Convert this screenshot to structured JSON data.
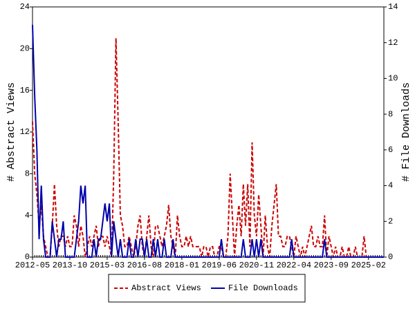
{
  "chart_data": {
    "type": "line",
    "y_label": "# Abstract Views",
    "y2_label": "# File Downloads",
    "categories": [
      "2012-05",
      null,
      null,
      null,
      null,
      null,
      null,
      null,
      null,
      null,
      null,
      null,
      null,
      null,
      null,
      null,
      null,
      "2013-10",
      null,
      null,
      null,
      null,
      null,
      null,
      null,
      null,
      null,
      null,
      null,
      null,
      null,
      null,
      null,
      null,
      "2015-03",
      null,
      null,
      null,
      null,
      null,
      null,
      null,
      null,
      null,
      null,
      null,
      null,
      null,
      null,
      null,
      null,
      "2016-08",
      null,
      null,
      null,
      null,
      null,
      null,
      null,
      null,
      null,
      null,
      null,
      null,
      null,
      null,
      null,
      null,
      "2018-01",
      null,
      null,
      null,
      null,
      null,
      null,
      null,
      null,
      null,
      null,
      null,
      null,
      null,
      null,
      null,
      null,
      "2019-06",
      null,
      null,
      null,
      null,
      null,
      null,
      null,
      null,
      null,
      null,
      null,
      null,
      null,
      null,
      null,
      null,
      "2020-11",
      null,
      null,
      null,
      null,
      null,
      null,
      null,
      null,
      null,
      null,
      null,
      null,
      null,
      null,
      null,
      null,
      "2022-04",
      null,
      null,
      null,
      null,
      null,
      null,
      null,
      null,
      null,
      null,
      null,
      null,
      null,
      null,
      null,
      null,
      "2023-09",
      null,
      null,
      null,
      null,
      null,
      null,
      null,
      null,
      null,
      null,
      null,
      null,
      null,
      null,
      null,
      null,
      "2025-02",
      null,
      null,
      null,
      null,
      null,
      null,
      null
    ],
    "series": [
      {
        "name": "Abstract Views",
        "color": "#cc0000",
        "dash": true,
        "values": [
          13,
          8,
          6,
          3,
          5,
          2,
          1,
          0,
          0,
          3,
          7,
          3,
          1,
          2,
          2,
          1,
          2,
          1,
          1,
          4,
          3,
          1,
          3,
          2,
          0,
          1,
          2,
          1,
          2,
          3,
          1,
          2,
          2,
          1,
          2,
          1,
          0,
          8,
          21,
          13,
          4,
          3,
          1,
          1,
          2,
          1,
          0,
          1,
          3,
          4,
          1,
          0,
          2,
          4,
          1,
          0,
          3,
          3,
          2,
          1,
          2,
          3,
          5,
          2,
          1,
          0,
          4,
          2,
          1,
          1,
          2,
          1,
          2,
          1,
          1,
          1,
          1,
          0,
          1,
          1,
          0,
          1,
          1,
          0,
          0,
          1,
          1,
          0,
          0,
          2,
          8,
          4,
          0,
          3,
          5,
          2,
          7,
          3,
          7,
          1,
          11,
          4,
          2,
          6,
          3,
          0,
          4,
          1,
          0,
          3,
          5,
          7,
          2,
          2,
          1,
          1,
          2,
          2,
          1,
          0,
          2,
          1,
          0,
          1,
          0,
          1,
          2,
          3,
          1,
          1,
          2,
          1,
          1,
          4,
          0,
          2,
          1,
          0,
          1,
          0,
          0,
          1,
          0,
          0,
          1,
          0,
          0,
          1,
          0,
          0,
          0,
          2,
          0,
          0,
          0,
          0,
          0,
          0,
          0,
          0,
          0
        ]
      },
      {
        "name": "File Downloads",
        "color": "#0000aa",
        "dash": false,
        "axis": "y2",
        "values": [
          13,
          9,
          6,
          1,
          4,
          1,
          0,
          0,
          0,
          2,
          1,
          0,
          1,
          1,
          2,
          0,
          0,
          0,
          0,
          0,
          1,
          2,
          4,
          3,
          4,
          0,
          0,
          0,
          1,
          0,
          1,
          1,
          2,
          3,
          2,
          3,
          0,
          2,
          1,
          0,
          1,
          0,
          0,
          0,
          1,
          0,
          0,
          1,
          0,
          1,
          1,
          0,
          1,
          0,
          0,
          1,
          0,
          1,
          0,
          0,
          1,
          0,
          0,
          0,
          1,
          0,
          0,
          0,
          0,
          0,
          0,
          0,
          0,
          0,
          0,
          0,
          0,
          0,
          0,
          0,
          0,
          0,
          0,
          0,
          0,
          0,
          1,
          0,
          0,
          0,
          0,
          0,
          0,
          0,
          0,
          0,
          1,
          0,
          0,
          0,
          1,
          0,
          1,
          0,
          1,
          0,
          0,
          0,
          0,
          0,
          0,
          0,
          0,
          0,
          0,
          0,
          0,
          0,
          1,
          0,
          0,
          0,
          0,
          0,
          0,
          0,
          0,
          0,
          0,
          0,
          0,
          0,
          0,
          1,
          0,
          0,
          0,
          0,
          0,
          0,
          0,
          0,
          0,
          0,
          0,
          0,
          0,
          0,
          0,
          0,
          0,
          0,
          0,
          0,
          0,
          0,
          0,
          0,
          0,
          0,
          0
        ]
      }
    ],
    "ylim": [
      0,
      24
    ],
    "yticks": [
      0,
      4,
      8,
      12,
      16,
      20,
      24
    ],
    "y2lim": [
      0,
      14
    ],
    "y2ticks": [
      0,
      2,
      4,
      6,
      8,
      10,
      12,
      14
    ],
    "legend": "bottom"
  }
}
